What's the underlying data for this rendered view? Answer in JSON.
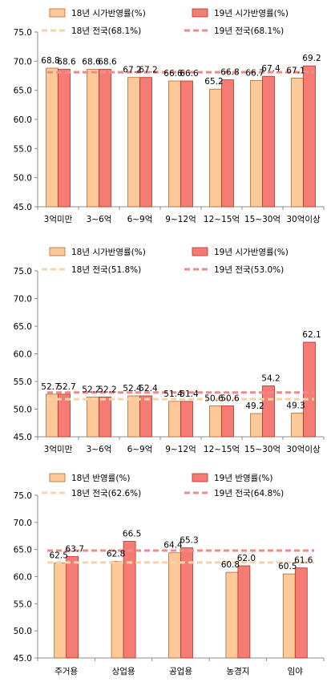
{
  "colors": {
    "bar18": "#FDC998",
    "bar18_border": "#B46A30",
    "bar19": "#F47C74",
    "bar19_border": "#B5322B",
    "avg18": "#F6D3A8",
    "avg19": "#F08A8A"
  },
  "chart_data": [
    {
      "type": "bar",
      "legend": {
        "bar18": "18년 시가반영률(%)",
        "bar19": "19년 시가반영률(%)",
        "avg18": "18년 전국(68.1%)",
        "avg19": "19년 전국(68.1%)"
      },
      "categories": [
        "3억미만",
        "3~6억",
        "6~9억",
        "9~12억",
        "12~15억",
        "15~30억",
        "30억이상"
      ],
      "series": [
        {
          "name": "18년 시가반영률(%)",
          "values": [
            68.8,
            68.6,
            67.2,
            66.6,
            65.2,
            66.7,
            67.1
          ]
        },
        {
          "name": "19년 시가반영률(%)",
          "values": [
            68.6,
            68.6,
            67.2,
            66.6,
            66.8,
            67.4,
            69.2
          ]
        }
      ],
      "reference_lines": [
        {
          "name": "18년 전국(68.1%)",
          "value": 68.1
        },
        {
          "name": "19년 전국(68.1%)",
          "value": 68.1
        }
      ],
      "yticks": [
        "45.0",
        "50.0",
        "55.0",
        "60.0",
        "65.0",
        "70.0",
        "75.0"
      ],
      "ylim": [
        45,
        75
      ],
      "grid": false
    },
    {
      "type": "bar",
      "legend": {
        "bar18": "18년 시가반영률(%)",
        "bar19": "19년 시가반영률(%)",
        "avg18": "18년 전국(51.8%)",
        "avg19": "19년 전국(53.0%)"
      },
      "categories": [
        "3억미만",
        "3~6억",
        "6~9억",
        "9~12억",
        "12~15억",
        "15~30억",
        "30억이상"
      ],
      "series": [
        {
          "name": "18년 시가반영률(%)",
          "values": [
            52.7,
            52.2,
            52.4,
            51.4,
            50.6,
            49.2,
            49.3
          ]
        },
        {
          "name": "19년 시가반영률(%)",
          "values": [
            52.7,
            52.2,
            52.4,
            51.4,
            50.6,
            54.2,
            62.1
          ]
        }
      ],
      "reference_lines": [
        {
          "name": "18년 전국(51.8%)",
          "value": 51.8
        },
        {
          "name": "19년 전국(53.0%)",
          "value": 53.0
        }
      ],
      "yticks": [
        "45.0",
        "50.0",
        "55.0",
        "60.0",
        "65.0",
        "70.0",
        "75.0"
      ],
      "ylim": [
        45,
        75
      ],
      "grid": false
    },
    {
      "type": "bar",
      "legend": {
        "bar18": "18년 반영률(%)",
        "bar19": "19년 반영률(%)",
        "avg18": "18년 전국(62.6%)",
        "avg19": "19년 전국(64.8%)"
      },
      "categories": [
        "주거용",
        "상업용",
        "공업용",
        "농경지",
        "임야"
      ],
      "series": [
        {
          "name": "18년 반영률(%)",
          "values": [
            62.5,
            62.8,
            64.4,
            60.8,
            60.5
          ]
        },
        {
          "name": "19년 반영률(%)",
          "values": [
            63.7,
            66.5,
            65.3,
            62.0,
            61.6
          ]
        }
      ],
      "reference_lines": [
        {
          "name": "18년 전국(62.6%)",
          "value": 62.6
        },
        {
          "name": "19년 전국(64.8%)",
          "value": 64.8
        }
      ],
      "yticks": [
        "45.0",
        "50.0",
        "55.0",
        "60.0",
        "65.0",
        "70.0",
        "75.0"
      ],
      "ylim": [
        45,
        75
      ],
      "grid": false
    }
  ]
}
